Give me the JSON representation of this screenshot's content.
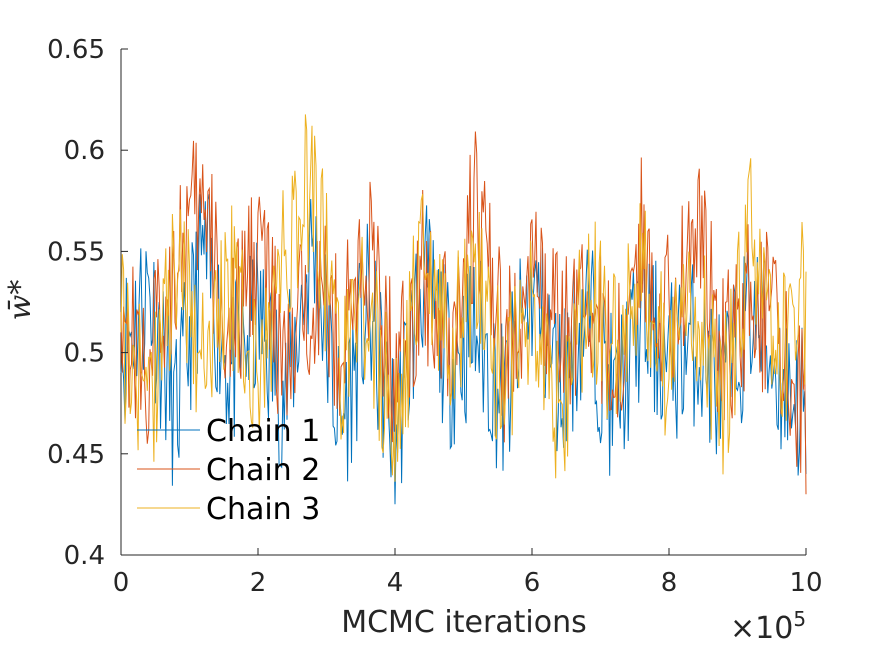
{
  "chart_data": {
    "type": "line",
    "xlabel": "MCMC iterations",
    "ylabel": "w̄*",
    "x_exponent_label": "×10",
    "x_exponent": "5",
    "xlim": [
      0,
      10
    ],
    "ylim": [
      0.4,
      0.65
    ],
    "x_ticks": [
      "0",
      "2",
      "4",
      "6",
      "8",
      "10"
    ],
    "y_ticks": [
      "0.4",
      "0.45",
      "0.5",
      "0.55",
      "0.6",
      "0.65"
    ],
    "grid": false,
    "legend_position": "lower-left",
    "series": [
      {
        "name": "Chain 1",
        "color": "#0072BD",
        "x": [
          0,
          0.4,
          0.8,
          1.2,
          1.6,
          2.0,
          2.4,
          2.8,
          3.2,
          3.6,
          4.0,
          4.4,
          4.8,
          5.2,
          5.6,
          6.0,
          6.4,
          6.8,
          7.2,
          7.6,
          8.0,
          8.4,
          8.8,
          9.2,
          9.6,
          10.0
        ],
        "values": [
          0.49,
          0.55,
          0.43,
          0.58,
          0.47,
          0.52,
          0.45,
          0.59,
          0.42,
          0.53,
          0.41,
          0.56,
          0.48,
          0.51,
          0.44,
          0.55,
          0.46,
          0.53,
          0.44,
          0.52,
          0.48,
          0.5,
          0.45,
          0.53,
          0.47,
          0.44
        ]
      },
      {
        "name": "Chain 2",
        "color": "#D95319",
        "x": [
          0,
          0.4,
          0.8,
          1.2,
          1.6,
          2.0,
          2.4,
          2.8,
          3.2,
          3.6,
          4.0,
          4.4,
          4.8,
          5.2,
          5.6,
          6.0,
          6.4,
          6.8,
          7.2,
          7.6,
          8.0,
          8.4,
          8.8,
          9.2,
          9.6,
          10.0
        ],
        "values": [
          0.52,
          0.47,
          0.58,
          0.62,
          0.49,
          0.6,
          0.46,
          0.56,
          0.5,
          0.58,
          0.47,
          0.56,
          0.51,
          0.62,
          0.48,
          0.56,
          0.5,
          0.54,
          0.47,
          0.59,
          0.52,
          0.61,
          0.48,
          0.55,
          0.5,
          0.43
        ]
      },
      {
        "name": "Chain 3",
        "color": "#EDB120",
        "x": [
          0,
          0.4,
          0.8,
          1.2,
          1.6,
          2.0,
          2.4,
          2.8,
          3.2,
          3.6,
          4.0,
          4.4,
          4.8,
          5.2,
          5.6,
          6.0,
          6.4,
          6.8,
          7.2,
          7.6,
          8.0,
          8.4,
          8.8,
          9.2,
          9.6,
          10.0
        ],
        "values": [
          0.51,
          0.44,
          0.57,
          0.49,
          0.55,
          0.46,
          0.58,
          0.65,
          0.47,
          0.53,
          0.42,
          0.57,
          0.5,
          0.56,
          0.45,
          0.54,
          0.43,
          0.55,
          0.49,
          0.57,
          0.47,
          0.54,
          0.44,
          0.6,
          0.49,
          0.54
        ]
      }
    ]
  }
}
